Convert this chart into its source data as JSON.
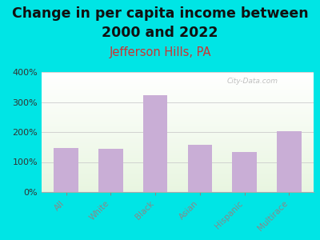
{
  "title_line1": "Change in per capita income between",
  "title_line2": "2000 and 2022",
  "subtitle": "Jefferson Hills, PA",
  "categories": [
    "All",
    "White",
    "Black",
    "Asian",
    "Hispanic",
    "Multirace"
  ],
  "values": [
    148,
    143,
    323,
    158,
    133,
    204
  ],
  "bar_color": "#c9aed6",
  "title_fontsize": 12.5,
  "subtitle_fontsize": 10.5,
  "subtitle_color": "#cc3333",
  "background_color": "#00e5e5",
  "ylim": [
    0,
    400
  ],
  "yticks": [
    0,
    100,
    200,
    300,
    400
  ],
  "watermark": "City-Data.com"
}
